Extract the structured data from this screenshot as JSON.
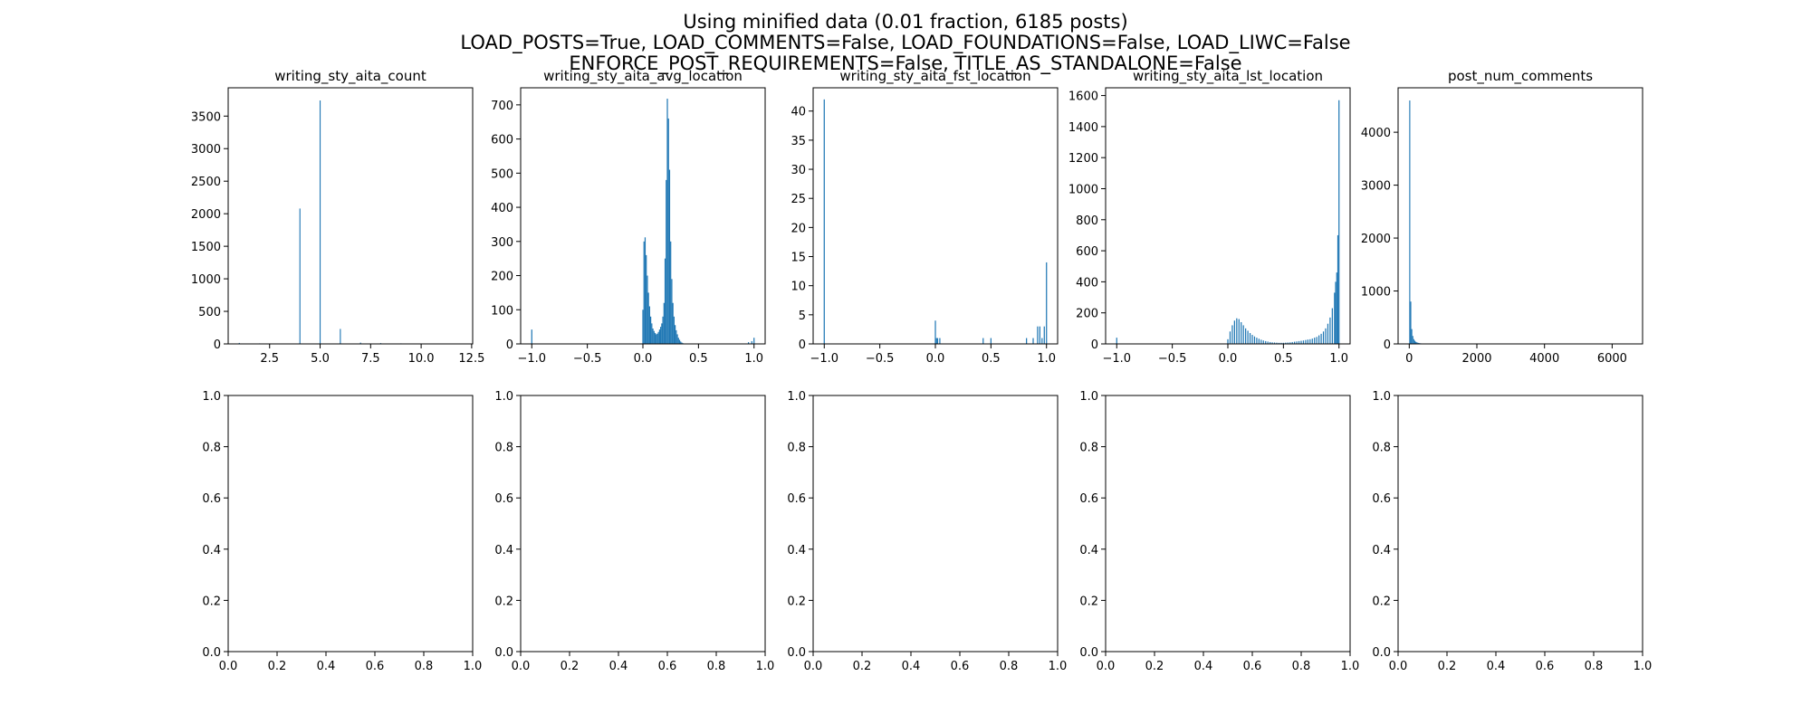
{
  "figure": {
    "suptitle_lines": [
      "Using minified data (0.01 fraction, 6185 posts)",
      "LOAD_POSTS=True, LOAD_COMMENTS=False, LOAD_FOUNDATIONS=False, LOAD_LIWC=False",
      "ENFORCE_POST_REQUIREMENTS=False, TITLE_AS_STANDALONE=False"
    ],
    "bar_color": "#1f77b4"
  },
  "chart_data": [
    {
      "type": "bar",
      "title": "writing_sty_aita_count",
      "xlim": [
        0.45,
        12.55
      ],
      "ylim": [
        0,
        3935
      ],
      "xticks": [
        2.5,
        5.0,
        7.5,
        10.0,
        12.5
      ],
      "xtick_labels": [
        "2.5",
        "5.0",
        "7.5",
        "10.0",
        "12.5"
      ],
      "yticks": [
        0,
        500,
        1000,
        1500,
        2000,
        2500,
        3000,
        3500
      ],
      "ytick_labels": [
        "0",
        "500",
        "1000",
        "1500",
        "2000",
        "2500",
        "3000",
        "3500"
      ],
      "bar_width": 0.05,
      "bars": [
        [
          1.0,
          15
        ],
        [
          2.0,
          8
        ],
        [
          3.0,
          5
        ],
        [
          4.0,
          2080
        ],
        [
          5.0,
          3740
        ],
        [
          6.0,
          230
        ],
        [
          7.0,
          20
        ],
        [
          8.0,
          12
        ],
        [
          9.0,
          8
        ],
        [
          10.0,
          5
        ],
        [
          11.0,
          3
        ],
        [
          12.0,
          2
        ]
      ]
    },
    {
      "type": "bar",
      "title": "writing_sty_aita_avg_location",
      "xlim": [
        -1.1,
        1.1
      ],
      "ylim": [
        0,
        750
      ],
      "xticks": [
        -1.0,
        -0.5,
        0.0,
        0.5,
        1.0
      ],
      "xtick_labels": [
        "−1.0",
        "−0.5",
        "0.0",
        "0.5",
        "1.0"
      ],
      "yticks": [
        0,
        100,
        200,
        300,
        400,
        500,
        600,
        700
      ],
      "ytick_labels": [
        "0",
        "100",
        "200",
        "300",
        "400",
        "500",
        "600",
        "700"
      ],
      "bar_width": 0.01,
      "bars": [
        [
          -1.0,
          42
        ],
        [
          -0.99,
          0
        ],
        [
          0.0,
          100
        ],
        [
          0.01,
          300
        ],
        [
          0.02,
          312
        ],
        [
          0.03,
          260
        ],
        [
          0.04,
          200
        ],
        [
          0.05,
          150
        ],
        [
          0.06,
          110
        ],
        [
          0.07,
          80
        ],
        [
          0.08,
          60
        ],
        [
          0.09,
          45
        ],
        [
          0.1,
          38
        ],
        [
          0.11,
          32
        ],
        [
          0.12,
          28
        ],
        [
          0.13,
          30
        ],
        [
          0.14,
          35
        ],
        [
          0.15,
          42
        ],
        [
          0.16,
          50
        ],
        [
          0.17,
          60
        ],
        [
          0.18,
          80
        ],
        [
          0.19,
          120
        ],
        [
          0.2,
          250
        ],
        [
          0.21,
          480
        ],
        [
          0.22,
          718
        ],
        [
          0.23,
          660
        ],
        [
          0.24,
          510
        ],
        [
          0.25,
          300
        ],
        [
          0.26,
          190
        ],
        [
          0.27,
          120
        ],
        [
          0.28,
          80
        ],
        [
          0.29,
          55
        ],
        [
          0.3,
          40
        ],
        [
          0.31,
          28
        ],
        [
          0.32,
          18
        ],
        [
          0.33,
          12
        ],
        [
          0.34,
          7
        ],
        [
          0.35,
          4
        ],
        [
          0.36,
          2
        ],
        [
          0.95,
          5
        ],
        [
          0.98,
          8
        ],
        [
          1.0,
          18
        ]
      ]
    },
    {
      "type": "bar",
      "title": "writing_sty_aita_fst_location",
      "xlim": [
        -1.1,
        1.1
      ],
      "ylim": [
        0,
        44
      ],
      "xticks": [
        -1.0,
        -0.5,
        0.0,
        0.5,
        1.0
      ],
      "xtick_labels": [
        "−1.0",
        "−0.5",
        "0.0",
        "0.5",
        "1.0"
      ],
      "yticks": [
        0,
        5,
        10,
        15,
        20,
        25,
        30,
        35,
        40
      ],
      "ytick_labels": [
        "0",
        "5",
        "10",
        "15",
        "20",
        "25",
        "30",
        "35",
        "40"
      ],
      "bar_width": 0.01,
      "bars": [
        [
          -1.0,
          42
        ],
        [
          0.0,
          4
        ],
        [
          0.01,
          1
        ],
        [
          0.02,
          1
        ],
        [
          0.04,
          1
        ],
        [
          0.43,
          1
        ],
        [
          0.5,
          1
        ],
        [
          0.82,
          1
        ],
        [
          0.88,
          1
        ],
        [
          0.92,
          3
        ],
        [
          0.94,
          3
        ],
        [
          0.96,
          1
        ],
        [
          0.98,
          3
        ],
        [
          1.0,
          14
        ]
      ]
    },
    {
      "type": "bar",
      "title": "writing_sty_aita_lst_location",
      "xlim": [
        -1.1,
        1.1
      ],
      "ylim": [
        0,
        1650
      ],
      "xticks": [
        -1.0,
        -0.5,
        0.0,
        0.5,
        1.0
      ],
      "xtick_labels": [
        "−1.0",
        "−0.5",
        "0.0",
        "0.5",
        "1.0"
      ],
      "yticks": [
        0,
        200,
        400,
        600,
        800,
        1000,
        1200,
        1400,
        1600
      ],
      "ytick_labels": [
        "0",
        "200",
        "400",
        "600",
        "800",
        "1000",
        "1200",
        "1400",
        "1600"
      ],
      "bar_width": 0.01,
      "bars": [
        [
          -1.0,
          40
        ],
        [
          0.0,
          30
        ],
        [
          0.02,
          80
        ],
        [
          0.04,
          120
        ],
        [
          0.06,
          150
        ],
        [
          0.08,
          165
        ],
        [
          0.1,
          160
        ],
        [
          0.12,
          140
        ],
        [
          0.14,
          120
        ],
        [
          0.16,
          100
        ],
        [
          0.18,
          85
        ],
        [
          0.2,
          70
        ],
        [
          0.22,
          58
        ],
        [
          0.24,
          48
        ],
        [
          0.26,
          40
        ],
        [
          0.28,
          33
        ],
        [
          0.3,
          27
        ],
        [
          0.32,
          22
        ],
        [
          0.34,
          18
        ],
        [
          0.36,
          15
        ],
        [
          0.38,
          12
        ],
        [
          0.4,
          10
        ],
        [
          0.42,
          9
        ],
        [
          0.44,
          8
        ],
        [
          0.46,
          7
        ],
        [
          0.48,
          7
        ],
        [
          0.5,
          7
        ],
        [
          0.52,
          8
        ],
        [
          0.54,
          9
        ],
        [
          0.56,
          10
        ],
        [
          0.58,
          12
        ],
        [
          0.6,
          14
        ],
        [
          0.62,
          16
        ],
        [
          0.64,
          18
        ],
        [
          0.66,
          20
        ],
        [
          0.68,
          22
        ],
        [
          0.7,
          25
        ],
        [
          0.72,
          28
        ],
        [
          0.74,
          30
        ],
        [
          0.76,
          34
        ],
        [
          0.78,
          40
        ],
        [
          0.8,
          45
        ],
        [
          0.82,
          55
        ],
        [
          0.84,
          65
        ],
        [
          0.86,
          80
        ],
        [
          0.88,
          100
        ],
        [
          0.9,
          130
        ],
        [
          0.92,
          170
        ],
        [
          0.94,
          230
        ],
        [
          0.96,
          330
        ],
        [
          0.97,
          400
        ],
        [
          0.98,
          460
        ],
        [
          0.99,
          700
        ],
        [
          1.0,
          1570
        ]
      ]
    },
    {
      "type": "bar",
      "title": "post_num_comments",
      "xlim": [
        -330,
        6900
      ],
      "ylim": [
        0,
        4840
      ],
      "xticks": [
        0,
        2000,
        4000,
        6000
      ],
      "xtick_labels": [
        "0",
        "2000",
        "4000",
        "6000"
      ],
      "yticks": [
        0,
        1000,
        2000,
        3000,
        4000
      ],
      "ytick_labels": [
        "0",
        "1000",
        "2000",
        "3000",
        "4000"
      ],
      "bar_width": 30,
      "bars": [
        [
          15,
          4600
        ],
        [
          45,
          800
        ],
        [
          75,
          280
        ],
        [
          105,
          150
        ],
        [
          135,
          90
        ],
        [
          165,
          60
        ],
        [
          195,
          40
        ],
        [
          225,
          30
        ],
        [
          255,
          22
        ],
        [
          285,
          16
        ],
        [
          315,
          12
        ],
        [
          345,
          10
        ],
        [
          375,
          8
        ],
        [
          405,
          6
        ],
        [
          435,
          5
        ],
        [
          465,
          4
        ],
        [
          495,
          3
        ],
        [
          555,
          2
        ],
        [
          615,
          2
        ],
        [
          700,
          1
        ],
        [
          900,
          1
        ],
        [
          1500,
          1
        ],
        [
          6300,
          1
        ]
      ]
    },
    {
      "type": "bar",
      "title": "",
      "xlim": [
        0,
        1
      ],
      "ylim": [
        0,
        1
      ],
      "xticks": [
        0,
        0.2,
        0.4,
        0.6,
        0.8,
        1.0
      ],
      "xtick_labels": [
        "0.0",
        "0.2",
        "0.4",
        "0.6",
        "0.8",
        "1.0"
      ],
      "yticks": [
        0,
        0.2,
        0.4,
        0.6,
        0.8,
        1.0
      ],
      "ytick_labels": [
        "0.0",
        "0.2",
        "0.4",
        "0.6",
        "0.8",
        "1.0"
      ],
      "bars": []
    },
    {
      "type": "bar",
      "title": "",
      "xlim": [
        0,
        1
      ],
      "ylim": [
        0,
        1
      ],
      "xticks": [
        0,
        0.2,
        0.4,
        0.6,
        0.8,
        1.0
      ],
      "xtick_labels": [
        "0.0",
        "0.2",
        "0.4",
        "0.6",
        "0.8",
        "1.0"
      ],
      "yticks": [
        0,
        0.2,
        0.4,
        0.6,
        0.8,
        1.0
      ],
      "ytick_labels": [
        "0.0",
        "0.2",
        "0.4",
        "0.6",
        "0.8",
        "1.0"
      ],
      "bars": []
    },
    {
      "type": "bar",
      "title": "",
      "xlim": [
        0,
        1
      ],
      "ylim": [
        0,
        1
      ],
      "xticks": [
        0,
        0.2,
        0.4,
        0.6,
        0.8,
        1.0
      ],
      "xtick_labels": [
        "0.0",
        "0.2",
        "0.4",
        "0.6",
        "0.8",
        "1.0"
      ],
      "yticks": [
        0,
        0.2,
        0.4,
        0.6,
        0.8,
        1.0
      ],
      "ytick_labels": [
        "0.0",
        "0.2",
        "0.4",
        "0.6",
        "0.8",
        "1.0"
      ],
      "bars": []
    },
    {
      "type": "bar",
      "title": "",
      "xlim": [
        0,
        1
      ],
      "ylim": [
        0,
        1
      ],
      "xticks": [
        0,
        0.2,
        0.4,
        0.6,
        0.8,
        1.0
      ],
      "xtick_labels": [
        "0.0",
        "0.2",
        "0.4",
        "0.6",
        "0.8",
        "1.0"
      ],
      "yticks": [
        0,
        0.2,
        0.4,
        0.6,
        0.8,
        1.0
      ],
      "ytick_labels": [
        "0.0",
        "0.2",
        "0.4",
        "0.6",
        "0.8",
        "1.0"
      ],
      "bars": []
    },
    {
      "type": "bar",
      "title": "",
      "xlim": [
        0,
        1
      ],
      "ylim": [
        0,
        1
      ],
      "xticks": [
        0,
        0.2,
        0.4,
        0.6,
        0.8,
        1.0
      ],
      "xtick_labels": [
        "0.0",
        "0.2",
        "0.4",
        "0.6",
        "0.8",
        "1.0"
      ],
      "yticks": [
        0,
        0.2,
        0.4,
        0.6,
        0.8,
        1.0
      ],
      "ytick_labels": [
        "0.0",
        "0.2",
        "0.4",
        "0.6",
        "0.8",
        "1.0"
      ],
      "bars": []
    }
  ]
}
